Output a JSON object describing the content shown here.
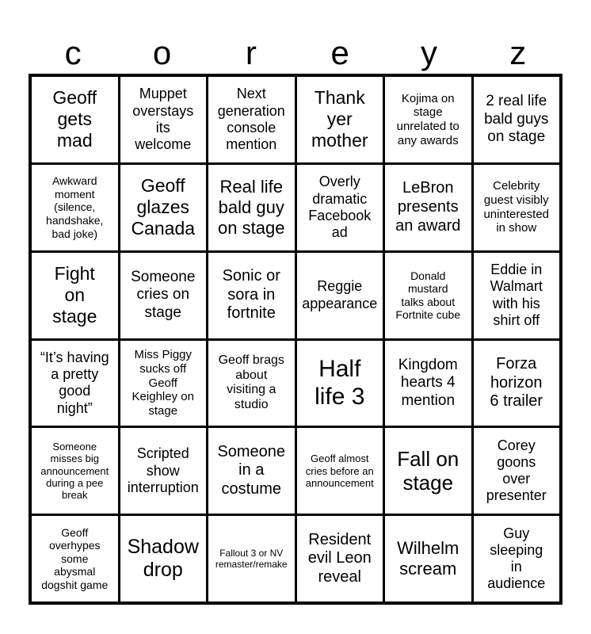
{
  "title": "coreyz",
  "colors": {
    "background": "#ffffff",
    "text": "#000000",
    "grid_line": "#000000"
  },
  "header": {
    "letters": [
      "c",
      "o",
      "r",
      "e",
      "y",
      "z"
    ]
  },
  "grid": {
    "rows": 6,
    "cols": 6,
    "cells": [
      [
        {
          "text": "Geoff\ngets\nmad",
          "fs": 23
        },
        {
          "text": "Muppet\noverstays\nits\nwelcome",
          "fs": 18
        },
        {
          "text": "Next\ngeneration\nconsole\nmention",
          "fs": 18
        },
        {
          "text": "Thank\nyer\nmother",
          "fs": 23
        },
        {
          "text": "Kojima on\nstage\nunrelated to\nany awards",
          "fs": 15
        },
        {
          "text": "2 real life\nbald guys\non stage",
          "fs": 19
        }
      ],
      [
        {
          "text": "Awkward\nmoment\n(silence,\nhandshake,\nbad joke)",
          "fs": 14
        },
        {
          "text": "Geoff\nglazes\nCanada",
          "fs": 23
        },
        {
          "text": "Real life\nbald guy\non stage",
          "fs": 22
        },
        {
          "text": "Overly\ndramatic\nFacebook\nad",
          "fs": 18
        },
        {
          "text": "LeBron\npresents\nan award",
          "fs": 20
        },
        {
          "text": "Celebrity\nguest visibly\nuninterested\nin show",
          "fs": 15
        }
      ],
      [
        {
          "text": "Fight\non\nstage",
          "fs": 23
        },
        {
          "text": "Someone\ncries on\nstage",
          "fs": 19
        },
        {
          "text": "Sonic or\nsora in\nfortnite",
          "fs": 20
        },
        {
          "text": "Reggie\nappearance",
          "fs": 18
        },
        {
          "text": "Donald\nmustard\ntalks about\nFortnite cube",
          "fs": 14
        },
        {
          "text": "Eddie in\nWalmart\nwith his\nshirt off",
          "fs": 18
        }
      ],
      [
        {
          "text": "“It’s having\na pretty\ngood\nnight”",
          "fs": 18
        },
        {
          "text": "Miss Piggy\nsucks off\nGeoff\nKeighley on\nstage",
          "fs": 15
        },
        {
          "text": "Geoff brags\nabout\nvisiting a\nstudio",
          "fs": 16
        },
        {
          "text": "Half\nlife 3",
          "fs": 30
        },
        {
          "text": "Kingdom\nhearts 4\nmention",
          "fs": 19
        },
        {
          "text": "Forza\nhorizon\n6 trailer",
          "fs": 20
        }
      ],
      [
        {
          "text": "Someone\nmisses big\nannouncement\nduring a pee\nbreak",
          "fs": 13
        },
        {
          "text": "Scripted\nshow\ninterruption",
          "fs": 18
        },
        {
          "text": "Someone\nin a\ncostume",
          "fs": 20
        },
        {
          "text": "Geoff almost\ncries before an\nannouncement",
          "fs": 13
        },
        {
          "text": "Fall on\nstage",
          "fs": 26
        },
        {
          "text": "Corey\ngoons\nover\npresenter",
          "fs": 18
        }
      ],
      [
        {
          "text": "Geoff\noverhypes\nsome\nabysmal\ndogshit game",
          "fs": 14
        },
        {
          "text": "Shadow\ndrop",
          "fs": 25
        },
        {
          "text": "Fallout 3 or NV\nremaster/remake",
          "fs": 12
        },
        {
          "text": "Resident\nevil Leon\nreveal",
          "fs": 20
        },
        {
          "text": "Wilhelm\nscream",
          "fs": 22
        },
        {
          "text": "Guy\nsleeping\nin\naudience",
          "fs": 18
        }
      ]
    ]
  }
}
